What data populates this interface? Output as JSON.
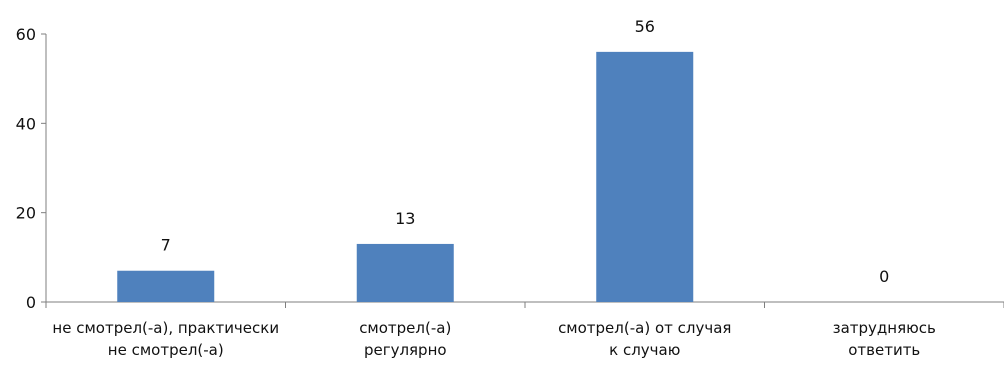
{
  "chart_data": {
    "type": "bar",
    "categories": [
      [
        "не смотрел(-а), практически",
        "не смотрел(-а)"
      ],
      [
        "смотрел(-а)",
        "регулярно"
      ],
      [
        "смотрел(-а) от случая",
        "к случаю"
      ],
      [
        "затрудняюсь",
        "ответить"
      ]
    ],
    "values": [
      7,
      13,
      56,
      0
    ],
    "data_labels": [
      "7",
      "13",
      "56",
      "0"
    ],
    "yticks": [
      0,
      20,
      40,
      60
    ],
    "ytick_labels": [
      "0",
      "20",
      "40",
      "60"
    ],
    "ylim": [
      0,
      60
    ],
    "grid": false,
    "legend": "none",
    "bar_color": "#4F81BD",
    "axis_color": "#7F7F7F"
  }
}
